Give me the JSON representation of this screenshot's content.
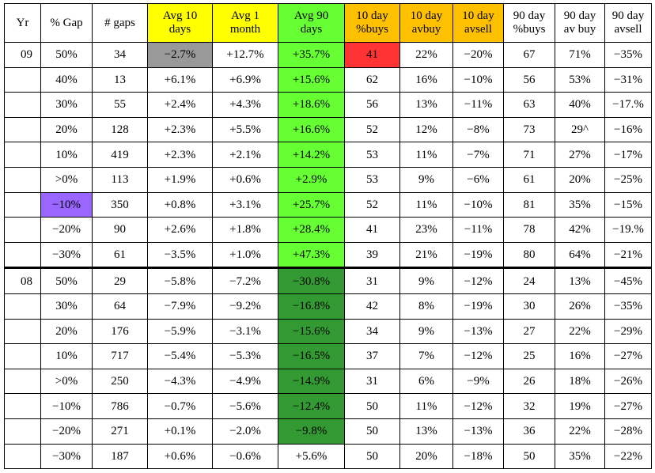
{
  "headers": [
    "Yr",
    "% Gap",
    "# gaps",
    "Avg 10 days",
    "Avg 1 month",
    "Avg 90 days",
    "10 day %buys",
    "10 day avbuy",
    "10 day avsell",
    "90 day %buys",
    "90 day av buy",
    "90 day avsell"
  ],
  "header_lines": [
    [
      "Yr"
    ],
    [
      "% Gap"
    ],
    [
      "# gaps"
    ],
    [
      "Avg 10",
      "days"
    ],
    [
      "Avg 1",
      "month"
    ],
    [
      "Avg 90",
      "days"
    ],
    [
      "10 day",
      "%buys"
    ],
    [
      "10 day",
      "avbuy"
    ],
    [
      "10 day",
      "avsell"
    ],
    [
      "90 day",
      "%buys"
    ],
    [
      "90 day",
      "av buy"
    ],
    [
      "90 day",
      "avsell"
    ]
  ],
  "header_colors": [
    "",
    "",
    "",
    "#ffff00",
    "#ffff00",
    "#66ff33",
    "#ffc000",
    "#ffc000",
    "#ffc000",
    "",
    "",
    ""
  ],
  "rows": [
    [
      "09",
      "50%",
      "34",
      "−2.7%",
      "+12.7%",
      "+35.7%",
      "41",
      "22%",
      "−20%",
      "67",
      "71%",
      "−35%"
    ],
    [
      "",
      "40%",
      "13",
      "+6.1%",
      "+6.9%",
      "+15.6%",
      "62",
      "16%",
      "−10%",
      "56",
      "53%",
      "−31%"
    ],
    [
      "",
      "30%",
      "55",
      "+2.4%",
      "+4.3%",
      "+18.6%",
      "56",
      "13%",
      "−11%",
      "63",
      "40%",
      "−17.%"
    ],
    [
      "",
      "20%",
      "128",
      "+2.3%",
      "+5.5%",
      "+16.6%",
      "52",
      "12%",
      "−8%",
      "73",
      "29^",
      "−16%"
    ],
    [
      "",
      "10%",
      "419",
      "+2.3%",
      "+2.1%",
      "+14.2%",
      "53",
      "11%",
      "−7%",
      "71",
      "27%",
      "−17%"
    ],
    [
      "",
      ">0%",
      "113",
      "+1.9%",
      "+0.6%",
      "+2.9%",
      "53",
      "9%",
      "−6%",
      "61",
      "20%",
      "−25%"
    ],
    [
      "",
      "−10%",
      "350",
      "+0.8%",
      "+3.1%",
      "+25.7%",
      "52",
      "11%",
      "−10%",
      "81",
      "35%",
      "−15%"
    ],
    [
      "",
      "−20%",
      "90",
      "+2.6%",
      "+1.8%",
      "+28.4%",
      "41",
      "23%",
      "−11%",
      "78",
      "42%",
      "−19.%"
    ],
    [
      "",
      "−30%",
      "61",
      "−3.5%",
      "+1.0%",
      "+47.3%",
      "39",
      "21%",
      "−19%",
      "80",
      "64%",
      "−21%"
    ],
    [
      "08",
      "50%",
      "29",
      "−5.8%",
      "−7.2%",
      "−30.8%",
      "31",
      "9%",
      "−12%",
      "24",
      "13%",
      "−45%"
    ],
    [
      "",
      "30%",
      "64",
      "−7.9%",
      "−9.2%",
      "−16.8%",
      "42",
      "8%",
      "−19%",
      "30",
      "26%",
      "−35%"
    ],
    [
      "",
      "20%",
      "176",
      "−5.9%",
      "−3.1%",
      "−15.6%",
      "34",
      "9%",
      "−13%",
      "27",
      "22%",
      "−29%"
    ],
    [
      "",
      "10%",
      "717",
      "−5.4%",
      "−5.3%",
      "−16.5%",
      "37",
      "7%",
      "−12%",
      "25",
      "16%",
      "−27%"
    ],
    [
      "",
      ">0%",
      "250",
      "−4.3%",
      "−4.9%",
      "−14.9%",
      "31",
      "6%",
      "−9%",
      "26",
      "18%",
      "−26%"
    ],
    [
      "",
      "−10%",
      "786",
      "−0.7%",
      "−5.6%",
      "−12.4%",
      "50",
      "11%",
      "−12%",
      "32",
      "19%",
      "−27%"
    ],
    [
      "",
      "−20%",
      "271",
      "+0.1%",
      "−2.0%",
      "−9.8%",
      "50",
      "13%",
      "−13%",
      "36",
      "22%",
      "−28%"
    ],
    [
      "",
      "−30%",
      "187",
      "+0.6%",
      "−0.6%",
      "+5.6%",
      "50",
      "20%",
      "−18%",
      "50",
      "35%",
      "−22%"
    ]
  ],
  "highlight_colors": {
    "gray": "#999999",
    "red": "#ff3333",
    "green": "#66ff33",
    "dark_green": "#339933",
    "purple": "#9966ff",
    "yellow": "#ffff00",
    "orange": "#ffc000"
  },
  "cell_highlights": [
    {
      "row": 0,
      "col": 3,
      "color": "gray"
    },
    {
      "row": 0,
      "col": 6,
      "color": "red"
    },
    {
      "row": 6,
      "col": 1,
      "color": "purple"
    },
    {
      "row": 0,
      "col": 5,
      "color": "green"
    },
    {
      "row": 1,
      "col": 5,
      "color": "green"
    },
    {
      "row": 2,
      "col": 5,
      "color": "green"
    },
    {
      "row": 3,
      "col": 5,
      "color": "green"
    },
    {
      "row": 4,
      "col": 5,
      "color": "green"
    },
    {
      "row": 5,
      "col": 5,
      "color": "green"
    },
    {
      "row": 6,
      "col": 5,
      "color": "green"
    },
    {
      "row": 7,
      "col": 5,
      "color": "green"
    },
    {
      "row": 8,
      "col": 5,
      "color": "green"
    },
    {
      "row": 9,
      "col": 5,
      "color": "dark_green"
    },
    {
      "row": 10,
      "col": 5,
      "color": "dark_green"
    },
    {
      "row": 11,
      "col": 5,
      "color": "dark_green"
    },
    {
      "row": 12,
      "col": 5,
      "color": "dark_green"
    },
    {
      "row": 13,
      "col": 5,
      "color": "dark_green"
    },
    {
      "row": 14,
      "col": 5,
      "color": "dark_green"
    },
    {
      "row": 15,
      "col": 5,
      "color": "dark_green"
    }
  ],
  "section_break_before_row": 9
}
